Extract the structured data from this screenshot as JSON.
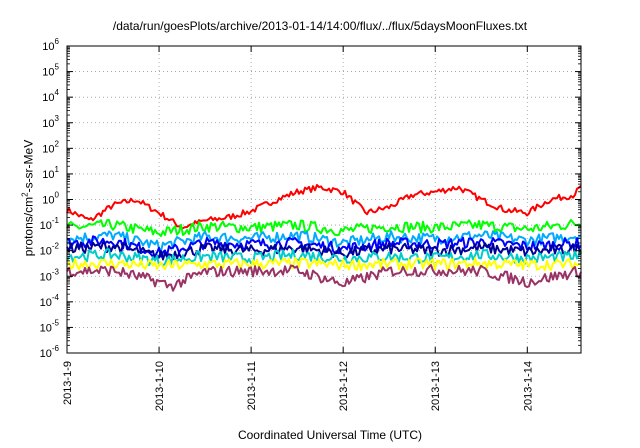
{
  "chart_data": {
    "type": "line",
    "title": "/data/run/goesPlots/archive/2013-01-14/14:00/flux/../flux/5daysMoonFluxes.txt",
    "xlabel": "Coordinated Universal Time (UTC)",
    "ylabel_parts": {
      "prefix": "protons/cm",
      "sup": "2",
      "suffix": "-s-sr-MeV"
    },
    "yscale": "log",
    "ylim_exp": [
      -6,
      6
    ],
    "y_ticks": [
      {
        "base": "10",
        "exp": "-6",
        "value": 1e-06
      },
      {
        "base": "10",
        "exp": "-5",
        "value": 1e-05
      },
      {
        "base": "10",
        "exp": "-4",
        "value": 0.0001
      },
      {
        "base": "10",
        "exp": "-3",
        "value": 0.001
      },
      {
        "base": "10",
        "exp": "-2",
        "value": 0.01
      },
      {
        "base": "10",
        "exp": "-1",
        "value": 0.1
      },
      {
        "base": "10",
        "exp": "0",
        "value": 1
      },
      {
        "base": "10",
        "exp": "1",
        "value": 10
      },
      {
        "base": "10",
        "exp": "2",
        "value": 100
      },
      {
        "base": "10",
        "exp": "3",
        "value": 1000
      },
      {
        "base": "10",
        "exp": "4",
        "value": 10000
      },
      {
        "base": "10",
        "exp": "5",
        "value": 100000
      },
      {
        "base": "10",
        "exp": "6",
        "value": 1000000
      }
    ],
    "x_ticks": [
      "2013-1-9",
      "2013-1-10",
      "2013-1-11",
      "2013-1-12",
      "2013-1-13",
      "2013-1-14"
    ],
    "xlim": [
      "2013-01-09T00:00",
      "2013-01-14T14:00"
    ],
    "grid": true,
    "series": [
      {
        "color": "#ff0000",
        "x": [
          "2013-01-09T00:00",
          "2013-01-09T06:00",
          "2013-01-09T12:00",
          "2013-01-09T18:00",
          "2013-01-10T00:00",
          "2013-01-10T06:00",
          "2013-01-10T12:00",
          "2013-01-10T18:00",
          "2013-01-11T00:00",
          "2013-01-11T06:00",
          "2013-01-11T12:00",
          "2013-01-11T18:00",
          "2013-01-12T00:00",
          "2013-01-12T06:00",
          "2013-01-12T12:00",
          "2013-01-12T18:00",
          "2013-01-13T00:00",
          "2013-01-13T06:00",
          "2013-01-13T12:00",
          "2013-01-13T18:00",
          "2013-01-14T00:00",
          "2013-01-14T06:00",
          "2013-01-14T12:00",
          "2013-01-14T14:00"
        ],
        "y": [
          0.4,
          0.15,
          0.6,
          1.0,
          0.3,
          0.08,
          0.15,
          0.2,
          0.35,
          0.9,
          2.0,
          3.0,
          2.0,
          0.3,
          0.5,
          1.5,
          2.0,
          3.0,
          1.0,
          0.4,
          0.3,
          1.0,
          1.5,
          3.0
        ]
      },
      {
        "color": "#00ff00",
        "x": [
          "2013-01-09T00:00",
          "2013-01-09T12:00",
          "2013-01-10T00:00",
          "2013-01-10T12:00",
          "2013-01-11T00:00",
          "2013-01-11T12:00",
          "2013-01-12T00:00",
          "2013-01-12T12:00",
          "2013-01-13T00:00",
          "2013-01-13T12:00",
          "2013-01-14T00:00",
          "2013-01-14T14:00"
        ],
        "y": [
          0.08,
          0.1,
          0.05,
          0.09,
          0.08,
          0.1,
          0.06,
          0.09,
          0.08,
          0.1,
          0.07,
          0.12
        ]
      },
      {
        "color": "#00aaff",
        "x": [
          "2013-01-09T00:00",
          "2013-01-09T12:00",
          "2013-01-10T00:00",
          "2013-01-10T12:00",
          "2013-01-11T00:00",
          "2013-01-11T12:00",
          "2013-01-12T00:00",
          "2013-01-12T12:00",
          "2013-01-13T00:00",
          "2013-01-13T12:00",
          "2013-01-14T00:00",
          "2013-01-14T14:00"
        ],
        "y": [
          0.03,
          0.04,
          0.015,
          0.035,
          0.03,
          0.04,
          0.02,
          0.035,
          0.03,
          0.04,
          0.025,
          0.04
        ]
      },
      {
        "color": "#0000ff",
        "x": [
          "2013-01-09T00:00",
          "2013-01-09T12:00",
          "2013-01-10T00:00",
          "2013-01-10T12:00",
          "2013-01-11T00:00",
          "2013-01-11T12:00",
          "2013-01-12T00:00",
          "2013-01-12T12:00",
          "2013-01-13T00:00",
          "2013-01-13T12:00",
          "2013-01-14T00:00",
          "2013-01-14T14:00"
        ],
        "y": [
          0.02,
          0.025,
          0.008,
          0.02,
          0.018,
          0.02,
          0.012,
          0.02,
          0.018,
          0.022,
          0.015,
          0.02
        ]
      },
      {
        "color": "#000099",
        "x": [
          "2013-01-09T00:00",
          "2013-01-09T12:00",
          "2013-01-10T00:00",
          "2013-01-10T12:00",
          "2013-01-11T00:00",
          "2013-01-11T12:00",
          "2013-01-12T00:00",
          "2013-01-12T12:00",
          "2013-01-13T00:00",
          "2013-01-13T12:00",
          "2013-01-14T00:00",
          "2013-01-14T14:00"
        ],
        "y": [
          0.012,
          0.015,
          0.006,
          0.012,
          0.01,
          0.013,
          0.008,
          0.012,
          0.01,
          0.013,
          0.009,
          0.012
        ]
      },
      {
        "color": "#00cccc",
        "x": [
          "2013-01-09T00:00",
          "2013-01-09T12:00",
          "2013-01-10T00:00",
          "2013-01-10T12:00",
          "2013-01-11T00:00",
          "2013-01-11T12:00",
          "2013-01-12T00:00",
          "2013-01-12T12:00",
          "2013-01-13T00:00",
          "2013-01-13T12:00",
          "2013-01-14T00:00",
          "2013-01-14T14:00"
        ],
        "y": [
          0.006,
          0.007,
          0.004,
          0.006,
          0.005,
          0.007,
          0.005,
          0.006,
          0.005,
          0.007,
          0.005,
          0.006
        ]
      },
      {
        "color": "#ffff00",
        "x": [
          "2013-01-09T00:00",
          "2013-01-09T12:00",
          "2013-01-10T00:00",
          "2013-01-10T12:00",
          "2013-01-11T00:00",
          "2013-01-11T12:00",
          "2013-01-12T00:00",
          "2013-01-12T12:00",
          "2013-01-13T00:00",
          "2013-01-13T12:00",
          "2013-01-14T00:00",
          "2013-01-14T14:00"
        ],
        "y": [
          0.003,
          0.0032,
          0.0025,
          0.003,
          0.003,
          0.0032,
          0.0028,
          0.003,
          0.003,
          0.0032,
          0.0028,
          0.003
        ]
      },
      {
        "color": "#993366",
        "x": [
          "2013-01-09T00:00",
          "2013-01-09T12:00",
          "2013-01-10T00:00",
          "2013-01-10T03:00",
          "2013-01-10T12:00",
          "2013-01-11T00:00",
          "2013-01-11T12:00",
          "2013-01-12T00:00",
          "2013-01-12T12:00",
          "2013-01-13T00:00",
          "2013-01-13T12:00",
          "2013-01-14T00:00",
          "2013-01-14T14:00"
        ],
        "y": [
          0.0016,
          0.0017,
          0.0006,
          0.0004,
          0.0015,
          0.0016,
          0.0017,
          0.0005,
          0.0016,
          0.0017,
          0.0016,
          0.0006,
          0.0016
        ]
      }
    ]
  }
}
